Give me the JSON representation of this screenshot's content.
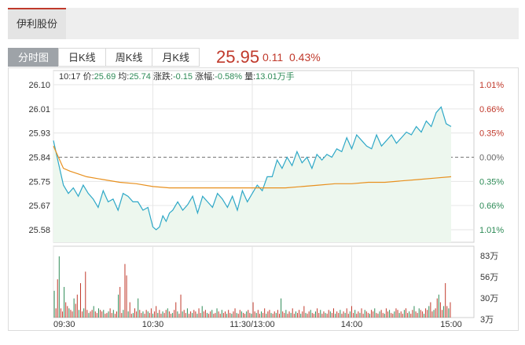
{
  "header": {
    "stock_name": "伊利股份"
  },
  "tabs": [
    {
      "label": "分时图",
      "active": true
    },
    {
      "label": "日K线",
      "active": false
    },
    {
      "label": "周K线",
      "active": false
    },
    {
      "label": "月K线",
      "active": false
    }
  ],
  "quote": {
    "price": "25.95",
    "change": "0.11",
    "change_pct": "0.43%"
  },
  "colors": {
    "accent_red": "#c0392b",
    "down_green": "#2e8b57",
    "price_line": "#2ea8c7",
    "avg_line": "#e8901e"
  },
  "chart_data": {
    "type": "line",
    "info_line": {
      "time": "10:17",
      "price_label": "价:",
      "price": "25.69",
      "avg_label": "均:",
      "avg": "25.74",
      "change_label": "涨跌:",
      "change": "-0.15",
      "pct_label": "涨幅:",
      "pct": "-0.58%",
      "volume_label": "量:",
      "volume": "13.01万手"
    },
    "y_left_ticks": [
      "26.10",
      "26.01",
      "25.93",
      "25.84",
      "25.75",
      "25.67",
      "25.58"
    ],
    "y_right_ticks": [
      "1.01%",
      "0.66%",
      "0.35%",
      "0.00%",
      "0.35%",
      "0.66%",
      "1.01%"
    ],
    "ylim": [
      25.58,
      26.1
    ],
    "prev_close": 25.84,
    "x_ticks": [
      "09:30",
      "10:30",
      "11:30/13:00",
      "14:00",
      "15:00"
    ],
    "minutes_total": 240,
    "series": [
      {
        "name": "价",
        "x": [
          0,
          3,
          6,
          9,
          12,
          15,
          18,
          21,
          24,
          27,
          30,
          33,
          36,
          39,
          42,
          45,
          48,
          51,
          54,
          57,
          60,
          62,
          64,
          66,
          68,
          70,
          72,
          75,
          78,
          81,
          84,
          87,
          90,
          93,
          96,
          99,
          102,
          105,
          108,
          111,
          114,
          117,
          120,
          123,
          126,
          129,
          132,
          135,
          138,
          141,
          144,
          147,
          150,
          153,
          156,
          159,
          162,
          165,
          168,
          171,
          174,
          177,
          180,
          183,
          186,
          189,
          192,
          195,
          198,
          201,
          204,
          207,
          210,
          213,
          216,
          219,
          222,
          225,
          228,
          231,
          234,
          237,
          240
        ],
        "values": [
          25.9,
          25.82,
          25.74,
          25.71,
          25.73,
          25.7,
          25.74,
          25.71,
          25.69,
          25.66,
          25.72,
          25.68,
          25.69,
          25.65,
          25.71,
          25.7,
          25.68,
          25.68,
          25.65,
          25.66,
          25.59,
          25.58,
          25.59,
          25.63,
          25.61,
          25.64,
          25.65,
          25.68,
          25.65,
          25.67,
          25.7,
          25.64,
          25.7,
          25.68,
          25.66,
          25.71,
          25.69,
          25.66,
          25.7,
          25.65,
          25.72,
          25.68,
          25.71,
          25.74,
          25.72,
          25.77,
          25.77,
          25.83,
          25.8,
          25.84,
          25.81,
          25.86,
          25.82,
          25.84,
          25.8,
          25.85,
          25.83,
          25.85,
          25.84,
          25.87,
          25.86,
          25.91,
          25.87,
          25.92,
          25.9,
          25.88,
          25.87,
          25.92,
          25.88,
          25.9,
          25.92,
          25.89,
          25.91,
          25.93,
          25.92,
          25.95,
          25.93,
          25.97,
          25.95,
          26.0,
          26.02,
          25.96,
          25.95
        ]
      },
      {
        "name": "均",
        "x": [
          0,
          6,
          10,
          15,
          20,
          30,
          40,
          50,
          60,
          70,
          80,
          90,
          100,
          110,
          120,
          130,
          140,
          150,
          160,
          170,
          180,
          190,
          200,
          210,
          220,
          230,
          240
        ],
        "values": [
          25.88,
          25.8,
          25.79,
          25.78,
          25.77,
          25.76,
          25.75,
          25.745,
          25.735,
          25.73,
          25.73,
          25.73,
          25.73,
          25.73,
          25.73,
          25.73,
          25.73,
          25.735,
          25.74,
          25.745,
          25.745,
          25.75,
          25.75,
          25.755,
          25.76,
          25.765,
          25.77
        ]
      }
    ],
    "volume": {
      "ticks": [
        "83万",
        "56万",
        "30万",
        "3万"
      ],
      "max": 83,
      "values": [
        35,
        12,
        50,
        80,
        12,
        8,
        40,
        20,
        15,
        12,
        10,
        8,
        25,
        18,
        30,
        10,
        45,
        8,
        12,
        60,
        10,
        6,
        8,
        10,
        15,
        8,
        6,
        12,
        10,
        8,
        10,
        5,
        6,
        8,
        12,
        6,
        10,
        5,
        8,
        30,
        40,
        6,
        10,
        70,
        55,
        8,
        20,
        5,
        6,
        12,
        8,
        25,
        10,
        6,
        8,
        5,
        10,
        8,
        6,
        12,
        5,
        8,
        15,
        6,
        10,
        5,
        8,
        6,
        10,
        12,
        8,
        5,
        6,
        10,
        20,
        8,
        5,
        30,
        8,
        10,
        6,
        12,
        5,
        8,
        6,
        10,
        8,
        5,
        12,
        6,
        15,
        8,
        10,
        6,
        5,
        8,
        10,
        5,
        6,
        12,
        8,
        5,
        10,
        6,
        8,
        5,
        10,
        6,
        5,
        8,
        12,
        6,
        5,
        10,
        8,
        6,
        5,
        8,
        10,
        6,
        5,
        20,
        8,
        6,
        10,
        5,
        8,
        6,
        12,
        5,
        8,
        10,
        6,
        5,
        8,
        6,
        10,
        5,
        25,
        8,
        6,
        10,
        5,
        8,
        6,
        12,
        5,
        8,
        6,
        10,
        5,
        8,
        15,
        6,
        5,
        8,
        10,
        6,
        5,
        8,
        12,
        6,
        10,
        5,
        8,
        6,
        5,
        10,
        8,
        6,
        12,
        5,
        8,
        6,
        10,
        5,
        8,
        6,
        12,
        5,
        8,
        15,
        6,
        10,
        5,
        8,
        6,
        12,
        5,
        10,
        8,
        6,
        5,
        10,
        8,
        12,
        6,
        5,
        8,
        10,
        6,
        5,
        12,
        8,
        10,
        6,
        5,
        8,
        12,
        10,
        6,
        8,
        5,
        10,
        12,
        6,
        8,
        5,
        10,
        15,
        8,
        6,
        12,
        10,
        8,
        5,
        12,
        10,
        15,
        20,
        8,
        10,
        12,
        25,
        30,
        20,
        10,
        15,
        45,
        15,
        12,
        20
      ]
    }
  }
}
